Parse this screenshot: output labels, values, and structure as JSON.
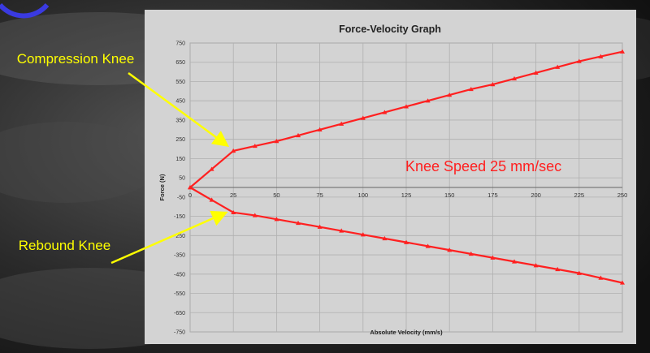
{
  "colors": {
    "series": "#ff2020",
    "callout": "#ffff00",
    "annotation": "#ff2020",
    "panel": "#d3d3d3",
    "grid": "#b0b0b0"
  },
  "callouts": {
    "compression": "Compression Knee",
    "rebound": "Rebound Knee"
  },
  "chart_data": {
    "type": "line",
    "title": "Force-Velocity Graph",
    "xlabel": "Absolute Velocity (mm/s)",
    "ylabel": "Force (N)",
    "xlim": [
      0,
      250
    ],
    "ylim": [
      -750,
      750
    ],
    "x_ticks": [
      0,
      25,
      50,
      75,
      100,
      125,
      150,
      175,
      200,
      225,
      250
    ],
    "y_ticks": [
      750,
      650,
      550,
      450,
      350,
      250,
      150,
      50,
      -50,
      -150,
      -250,
      -350,
      -450,
      -550,
      -650,
      -750
    ],
    "grid": true,
    "annotation": "Knee Speed 25 mm/sec",
    "series": [
      {
        "x": [
          0,
          12.5,
          25,
          37.5,
          50,
          62.5,
          75,
          87.5,
          100,
          112.5,
          125,
          137.5,
          150,
          162.5,
          175,
          187.5,
          200,
          212.5,
          225,
          237.5,
          250
        ],
        "values": [
          0,
          95,
          190,
          215,
          240,
          270,
          300,
          330,
          360,
          390,
          420,
          450,
          480,
          510,
          535,
          565,
          595,
          625,
          655,
          680,
          705
        ]
      },
      {
        "x": [
          0,
          12.5,
          25,
          37.5,
          50,
          62.5,
          75,
          87.5,
          100,
          112.5,
          125,
          137.5,
          150,
          162.5,
          175,
          187.5,
          200,
          212.5,
          225,
          237.5,
          250
        ],
        "values": [
          0,
          -65,
          -130,
          -145,
          -165,
          -185,
          -205,
          -225,
          -245,
          -265,
          -285,
          -305,
          -325,
          -345,
          -365,
          -385,
          -405,
          -425,
          -445,
          -470,
          -495
        ]
      }
    ]
  }
}
